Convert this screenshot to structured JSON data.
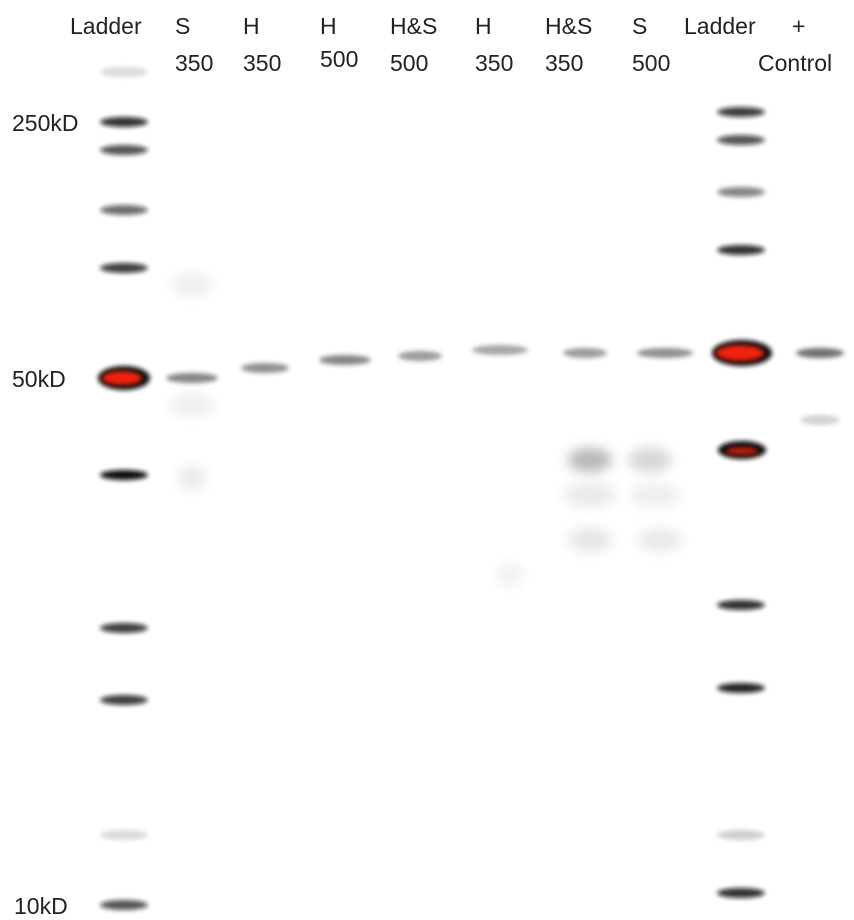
{
  "lanes": [
    {
      "line1": "Ladder"
    },
    {
      "line1": "S",
      "line2": "350"
    },
    {
      "line1": "H",
      "line2": "350"
    },
    {
      "line1": "H",
      "line2": "500"
    },
    {
      "line1": "H&S",
      "line2": "500"
    },
    {
      "line1": "H",
      "line2": "350"
    },
    {
      "line1": "H&S",
      "line2": "350"
    },
    {
      "line1": "S",
      "line2": "500"
    },
    {
      "line1": "Ladder"
    },
    {
      "line1": "+",
      "line2": "Control"
    }
  ],
  "markers": [
    "250kD",
    "50kD",
    "10kD"
  ]
}
